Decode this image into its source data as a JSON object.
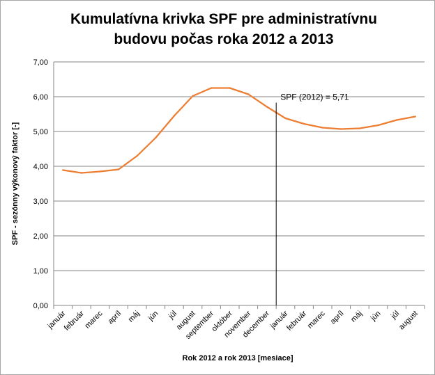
{
  "chart_data": {
    "type": "line",
    "title_line1": "Kumulatívna krivka SPF pre administratívnu",
    "title_line2": "budovu počas roka 2012 a 2013",
    "xlabel": "Rok 2012 a rok 2013 [mesiace]",
    "ylabel": "SPF - sezónny výkonový faktor [-]",
    "ylim": [
      0,
      7
    ],
    "yticks": [
      "0,00",
      "1,00",
      "2,00",
      "3,00",
      "4,00",
      "5,00",
      "6,00",
      "7,00"
    ],
    "grid": true,
    "categories": [
      "január",
      "február",
      "marec",
      "apríl",
      "máj",
      "jún",
      "júl",
      "august",
      "september",
      "október",
      "november",
      "december",
      "január",
      "február",
      "marec",
      "apríl",
      "máj",
      "jún",
      "júl",
      "august"
    ],
    "series": [
      {
        "values": [
          3.89,
          3.81,
          3.85,
          3.91,
          4.3,
          4.82,
          5.45,
          6.02,
          6.25,
          6.25,
          6.07,
          5.71,
          5.38,
          5.22,
          5.11,
          5.07,
          5.09,
          5.18,
          5.33,
          5.43
        ]
      }
    ],
    "annotation": {
      "text": "SPF (2012) = 5,71",
      "after_category_index": 11
    },
    "colors": {
      "line": "#ed7d31",
      "grid": "#868686",
      "marker_line": "#000000"
    }
  }
}
